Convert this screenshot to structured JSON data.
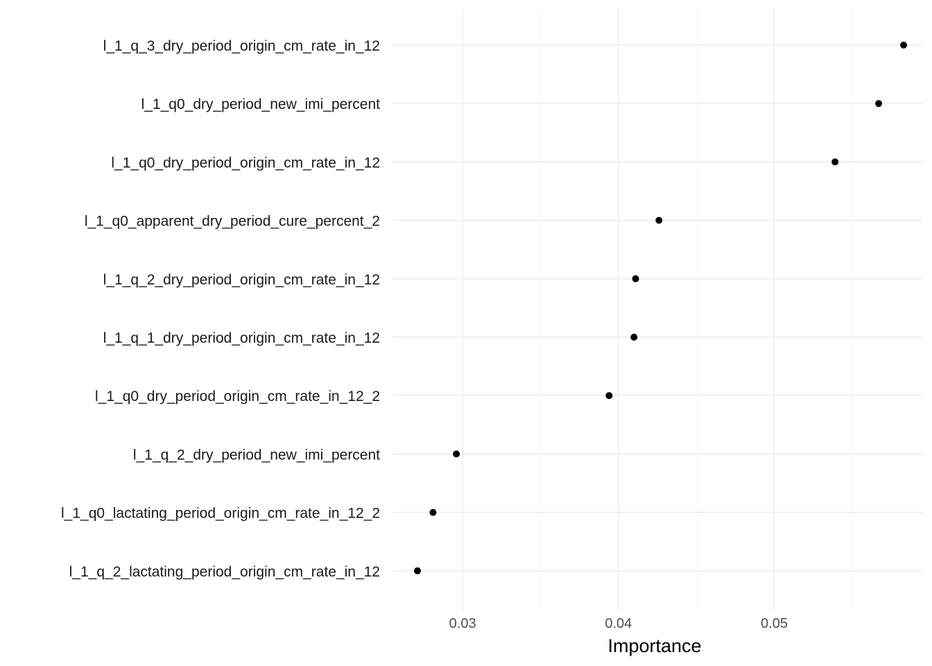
{
  "chart_data": {
    "type": "scatter",
    "xlabel": "Importance",
    "ylabel": "",
    "xlim": [
      0.0255,
      0.0595
    ],
    "x_ticks": [
      0.03,
      0.04,
      0.05
    ],
    "x_tick_labels": [
      "0.03",
      "0.04",
      "0.05"
    ],
    "x_minor_ticks": [
      0.035,
      0.045,
      0.055
    ],
    "grid": true,
    "point_color": "#000000",
    "categories": [
      "l_1_q_3_dry_period_origin_cm_rate_in_12",
      "l_1_q0_dry_period_new_imi_percent",
      "l_1_q0_dry_period_origin_cm_rate_in_12",
      "l_1_q0_apparent_dry_period_cure_percent_2",
      "l_1_q_2_dry_period_origin_cm_rate_in_12",
      "l_1_q_1_dry_period_origin_cm_rate_in_12",
      "l_1_q0_dry_period_origin_cm_rate_in_12_2",
      "l_1_q_2_dry_period_new_imi_percent",
      "l_1_q0_lactating_period_origin_cm_rate_in_12_2",
      "l_1_q_2_lactating_period_origin_cm_rate_in_12"
    ],
    "values": [
      0.0583,
      0.0567,
      0.0539,
      0.0426,
      0.0411,
      0.041,
      0.0394,
      0.0296,
      0.0281,
      0.0271
    ]
  }
}
